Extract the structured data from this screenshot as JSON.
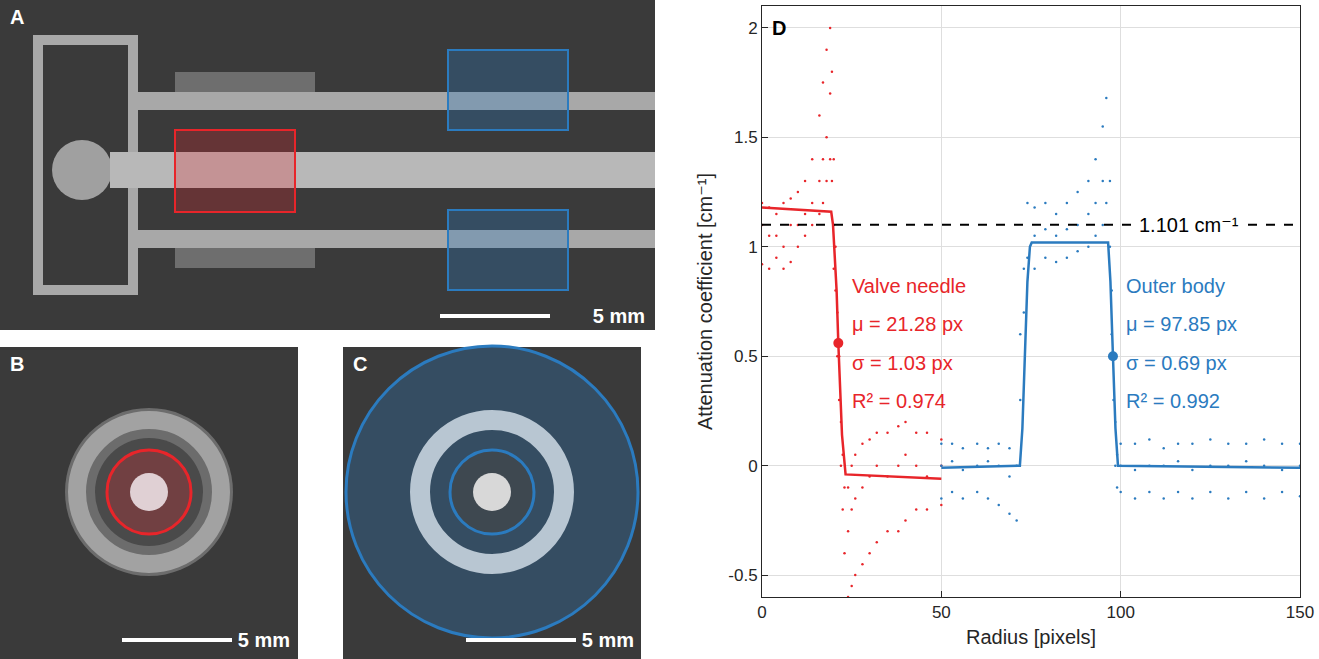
{
  "chart_data": {
    "type": "scatter",
    "title": "D",
    "x_label": "Radius [pixels]",
    "y_label": "Attenuation coefficient [cm⁻¹]",
    "xlim": [
      0,
      150
    ],
    "xticks": [
      0,
      50,
      100,
      150
    ],
    "ylim": [
      -0.6,
      2.1
    ],
    "yticks": [
      -0.5,
      0,
      0.5,
      1,
      1.5,
      2
    ],
    "grid": true,
    "series": [
      {
        "type": "scatter",
        "color": "#e8252a",
        "marker": "dot",
        "x": [
          0,
          0,
          0,
          2,
          2,
          2,
          4,
          4,
          4,
          6,
          6,
          6,
          8,
          8,
          8,
          10,
          10,
          10,
          12,
          12,
          12,
          14,
          14,
          14,
          16,
          16,
          16,
          17,
          17,
          17,
          18,
          18,
          18,
          19,
          19,
          19,
          19.5,
          19.5,
          20,
          20,
          20,
          20.5,
          20.5,
          21,
          21,
          21.5,
          21.5,
          22,
          22,
          22.5,
          22.5,
          23,
          23,
          24,
          24,
          24,
          25,
          25,
          25,
          26,
          26,
          26,
          28,
          28,
          28,
          30,
          30,
          30,
          32,
          32,
          32,
          35,
          35,
          35,
          38,
          38,
          38,
          40,
          40,
          40,
          43,
          43,
          43,
          46,
          46,
          46,
          50,
          50,
          50
        ],
        "values": [
          1.1,
          0.92,
          1.2,
          1.05,
          0.9,
          1.18,
          0.95,
          1.15,
          1.05,
          1.0,
          1.2,
          0.9,
          1.1,
          0.93,
          1.22,
          1.0,
          1.25,
          1.1,
          1.05,
          1.3,
          1.15,
          1.1,
          1.4,
          1.2,
          1.15,
          1.6,
          1.3,
          1.2,
          1.75,
          1.4,
          1.3,
          1.9,
          1.5,
          1.4,
          2.0,
          1.7,
          1.3,
          1.8,
          0.9,
          1.4,
          1.1,
          0.8,
          1.0,
          0.5,
          0.7,
          0.3,
          0.5,
          0.0,
          0.2,
          -0.2,
          0.05,
          -0.4,
          -0.1,
          -0.6,
          -0.3,
          -0.1,
          -0.55,
          -0.2,
          0.0,
          -0.5,
          -0.15,
          0.05,
          -0.45,
          -0.1,
          0.1,
          -0.4,
          -0.05,
          0.12,
          -0.35,
          0.0,
          0.15,
          -0.3,
          -0.05,
          0.15,
          -0.3,
          0.0,
          0.18,
          -0.25,
          0.05,
          0.2,
          -0.2,
          0.0,
          0.15,
          -0.2,
          -0.05,
          0.15,
          -0.18,
          0.0,
          0.12
        ]
      },
      {
        "type": "line",
        "color": "#e8252a",
        "line_style": "solid",
        "x": [
          0,
          19.3,
          19.8,
          20.25,
          20.8,
          21.28,
          21.8,
          22.31,
          23.3,
          50
        ],
        "values": [
          1.18,
          1.16,
          1.1,
          0.98,
          0.8,
          0.56,
          0.32,
          0.14,
          -0.04,
          -0.06
        ]
      },
      {
        "type": "point",
        "color": "#e8252a",
        "marker": "circle",
        "x": [
          21.28
        ],
        "values": [
          0.56
        ]
      },
      {
        "type": "scatter",
        "color": "#2b7bbf",
        "marker": "dot",
        "x": [
          50,
          50,
          50,
          53,
          53,
          53,
          56,
          56,
          56,
          60,
          60,
          60,
          63,
          63,
          63,
          66,
          66,
          66,
          69,
          69,
          69,
          71,
          71,
          72,
          72,
          73,
          73,
          74,
          74,
          76,
          76,
          76,
          79,
          79,
          79,
          82,
          82,
          82,
          85,
          85,
          85,
          88,
          88,
          88,
          91,
          91,
          91,
          93,
          93,
          93,
          95,
          95,
          95,
          96,
          96,
          97,
          97,
          97.5,
          97.5,
          98,
          98,
          98.5,
          98.5,
          99,
          99,
          100,
          100,
          100,
          104,
          104,
          104,
          108,
          108,
          108,
          112,
          112,
          112,
          116,
          116,
          116,
          120,
          120,
          120,
          125,
          125,
          125,
          130,
          130,
          130,
          135,
          135,
          135,
          140,
          140,
          140,
          145,
          145,
          145,
          150,
          150,
          150
        ],
        "values": [
          -0.15,
          0.0,
          0.1,
          -0.12,
          0.02,
          0.1,
          -0.15,
          -0.02,
          0.08,
          -0.12,
          0.0,
          0.1,
          -0.15,
          0.02,
          0.08,
          -0.18,
          0.0,
          0.1,
          -0.22,
          -0.05,
          0.08,
          -0.25,
          0.0,
          0.3,
          0.6,
          0.7,
          0.9,
          0.95,
          1.2,
          0.9,
          1.05,
          1.18,
          0.95,
          1.08,
          1.2,
          0.93,
          1.05,
          1.15,
          0.95,
          1.08,
          1.2,
          0.98,
          1.1,
          1.25,
          1.0,
          1.15,
          1.3,
          1.05,
          1.2,
          1.4,
          1.1,
          1.3,
          1.55,
          1.2,
          1.68,
          1.0,
          1.3,
          0.6,
          0.8,
          0.3,
          0.5,
          0.0,
          0.2,
          -0.1,
          0.05,
          -0.12,
          0.0,
          0.1,
          -0.15,
          -0.02,
          0.1,
          -0.12,
          0.0,
          0.12,
          -0.15,
          0.0,
          0.08,
          -0.12,
          0.02,
          0.1,
          -0.15,
          -0.02,
          0.1,
          -0.12,
          0.0,
          0.12,
          -0.15,
          0.0,
          0.1,
          -0.12,
          0.02,
          0.1,
          -0.15,
          0.0,
          0.12,
          -0.12,
          -0.02,
          0.1,
          -0.14,
          0.0,
          0.1
        ]
      },
      {
        "type": "line",
        "color": "#2b7bbf",
        "line_style": "solid",
        "x": [
          50,
          71.9,
          72.6,
          73.3,
          74.0,
          74.7,
          75.2,
          96.5,
          97.15,
          97.85,
          98.55,
          99.25,
          150
        ],
        "values": [
          -0.01,
          0.0,
          0.17,
          0.5,
          0.84,
          1.0,
          1.02,
          1.02,
          0.84,
          0.5,
          0.17,
          0.0,
          -0.01
        ]
      },
      {
        "type": "point",
        "color": "#2b7bbf",
        "marker": "circle",
        "x": [
          97.85
        ],
        "values": [
          0.5
        ]
      },
      {
        "type": "hline",
        "color": "#000000",
        "line_style": "dash",
        "values": [
          1.101
        ],
        "label": "1.101 cm⁻¹"
      }
    ],
    "annotations": [
      {
        "color": "#e8252a",
        "lines": [
          "Valve needle",
          "μ = 21.28 px",
          "σ = 1.03 px",
          "R² = 0.974"
        ]
      },
      {
        "color": "#2b7bbf",
        "lines": [
          "Outer body",
          "μ = 97.85 px",
          "σ = 0.69 px",
          "R² = 0.992"
        ]
      }
    ]
  },
  "image_panels": [
    {
      "label": "A",
      "scale_bar": "5 mm"
    },
    {
      "label": "B",
      "scale_bar": "5 mm"
    },
    {
      "label": "C",
      "scale_bar": "5 mm"
    }
  ]
}
